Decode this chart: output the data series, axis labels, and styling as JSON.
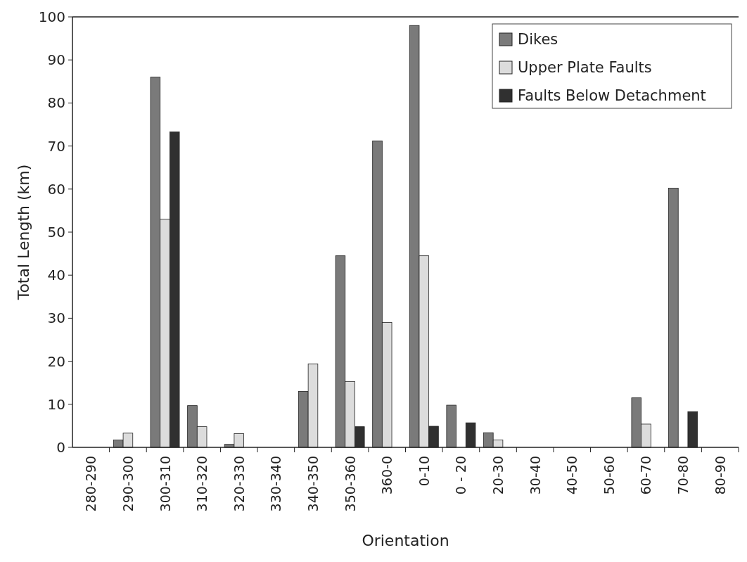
{
  "chart_data": {
    "type": "bar",
    "xlabel": "Orientation",
    "ylabel": "Total Length (km)",
    "categories": [
      "280-290",
      "290-300",
      "300-310",
      "310-320",
      "320-330",
      "330-340",
      "340-350",
      "350-360",
      "360-0",
      "0-10",
      "0 - 20",
      "20-30",
      "30-40",
      "40-50",
      "50-60",
      "60-70",
      "70-80",
      "80-90"
    ],
    "series": [
      {
        "name": "Dikes",
        "color": "#7a7a7a",
        "values": [
          0,
          1.7,
          86,
          9.7,
          0.7,
          0,
          13,
          44.5,
          71.2,
          98,
          9.8,
          3.4,
          0,
          0,
          0,
          11.5,
          60.2,
          0
        ]
      },
      {
        "name": "Upper Plate Faults",
        "color": "#dcdcdc",
        "values": [
          0,
          3.3,
          53,
          4.8,
          3.2,
          0,
          19.4,
          15.3,
          29,
          44.5,
          0,
          1.7,
          0,
          0,
          0,
          5.4,
          0,
          0
        ]
      },
      {
        "name": "Faults Below Detachment",
        "color": "#303030",
        "values": [
          0,
          0,
          73.3,
          0,
          0,
          0,
          0,
          4.8,
          0,
          4.9,
          5.7,
          0,
          0,
          0,
          0,
          0,
          8.3,
          0
        ]
      }
    ],
    "ylim": [
      0,
      100
    ],
    "yticks": [
      0,
      10,
      20,
      30,
      40,
      50,
      60,
      70,
      80,
      90,
      100
    ],
    "grid": false,
    "legend": "top right"
  }
}
